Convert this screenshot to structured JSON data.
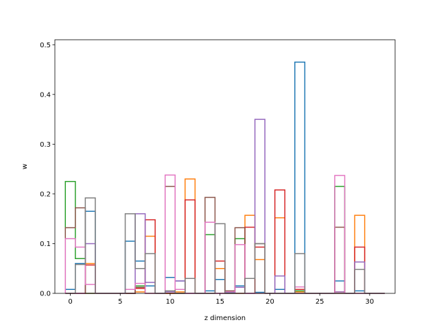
{
  "chart_data": {
    "type": "bar",
    "style": "step-histogram",
    "title": "",
    "xlabel": "z dimension",
    "ylabel": "w",
    "xlim": [
      -1.55,
      32.55
    ],
    "ylim": [
      0,
      0.51
    ],
    "xticks": [
      0,
      5,
      10,
      15,
      20,
      25,
      30
    ],
    "yticks": [
      0.0,
      0.1,
      0.2,
      0.3,
      0.4,
      0.5
    ],
    "grid": false,
    "legend": "none",
    "x": [
      0,
      1,
      2,
      3,
      4,
      5,
      6,
      7,
      8,
      9,
      10,
      11,
      12,
      13,
      14,
      15,
      16,
      17,
      18,
      19,
      20,
      21,
      22,
      23,
      24,
      25,
      26,
      27,
      28,
      29,
      30,
      31
    ],
    "series": [
      {
        "color": "#1f77b4",
        "values": [
          0.008,
          0.06,
          0.165,
          0,
          0,
          0,
          0.105,
          0.065,
          0.015,
          0,
          0.032,
          0.025,
          0,
          0,
          0.005,
          0.028,
          0.002,
          0.015,
          0,
          0.002,
          0,
          0.008,
          0,
          0.465,
          0,
          0,
          0,
          0.025,
          0,
          0.005,
          0,
          0
        ]
      },
      {
        "color": "#ff7f0e",
        "values": [
          0,
          0,
          0.06,
          0,
          0,
          0,
          0,
          0.003,
          0.115,
          0,
          0,
          0.003,
          0.23,
          0,
          0,
          0.05,
          0,
          0,
          0.157,
          0.068,
          0,
          0.152,
          0,
          0.003,
          0,
          0,
          0,
          0.003,
          0,
          0.157,
          0,
          0
        ]
      },
      {
        "color": "#2ca02c",
        "values": [
          0.225,
          0.07,
          0,
          0,
          0,
          0,
          0,
          0.015,
          0,
          0,
          0,
          0,
          0,
          0,
          0.118,
          0,
          0,
          0.11,
          0,
          0,
          0,
          0,
          0,
          0.005,
          0,
          0,
          0,
          0.215,
          0,
          0,
          0,
          0
        ]
      },
      {
        "color": "#d62728",
        "values": [
          0,
          0,
          0.057,
          0,
          0,
          0,
          0,
          0.01,
          0.148,
          0,
          0,
          0,
          0.188,
          0,
          0,
          0.065,
          0,
          0,
          0.133,
          0.093,
          0,
          0.208,
          0,
          0.008,
          0,
          0,
          0,
          0,
          0,
          0.093,
          0,
          0
        ]
      },
      {
        "color": "#9467bd",
        "values": [
          0,
          0,
          0.1,
          0,
          0,
          0,
          0,
          0.16,
          0.022,
          0,
          0.003,
          0.025,
          0,
          0,
          0,
          0,
          0,
          0.012,
          0,
          0.35,
          0,
          0.035,
          0,
          0,
          0,
          0,
          0,
          0.003,
          0,
          0.063,
          0,
          0
        ]
      },
      {
        "color": "#8c564b",
        "values": [
          0.132,
          0.172,
          0,
          0,
          0,
          0,
          0,
          0.012,
          0,
          0,
          0.215,
          0,
          0,
          0,
          0.193,
          0,
          0.005,
          0.132,
          0,
          0.1,
          0,
          0,
          0,
          0,
          0,
          0,
          0,
          0.133,
          0,
          0,
          0,
          0
        ]
      },
      {
        "color": "#e377c2",
        "values": [
          0.11,
          0.093,
          0.018,
          0,
          0,
          0,
          0.008,
          0.02,
          0,
          0,
          0.238,
          0.008,
          0,
          0,
          0.143,
          0,
          0.003,
          0.098,
          0,
          0,
          0,
          0,
          0,
          0.013,
          0,
          0,
          0,
          0.237,
          0,
          0,
          0,
          0
        ]
      },
      {
        "color": "#7f7f7f",
        "values": [
          0,
          0.058,
          0.192,
          0,
          0,
          0,
          0.16,
          0.05,
          0.08,
          0,
          0.005,
          0,
          0.03,
          0,
          0,
          0.14,
          0,
          0,
          0.03,
          0.1,
          0,
          0,
          0,
          0.08,
          0,
          0,
          0,
          0,
          0,
          0.048,
          0,
          0
        ]
      }
    ]
  }
}
